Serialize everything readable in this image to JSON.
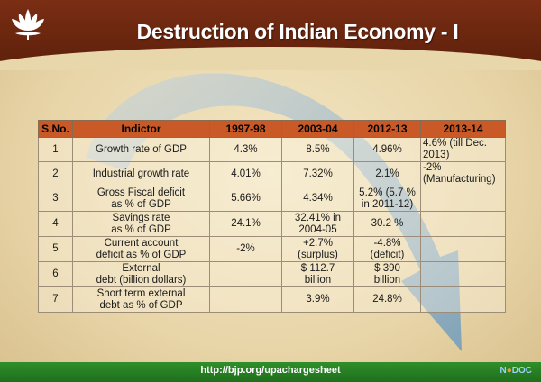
{
  "slide": {
    "title": "Destruction of Indian Economy - I",
    "footer_url": "http://bjp.org/upachargesheet",
    "footer_mark_parts": [
      "N",
      "DOC"
    ]
  },
  "table": {
    "headers": [
      "S.No.",
      "Indictor",
      "1997-98",
      "2003-04",
      "2012-13",
      "2013-14"
    ],
    "rows": [
      {
        "sno": "1",
        "indicator": [
          "Growth rate of GDP"
        ],
        "y1997": [
          "4.3%"
        ],
        "y2003": [
          "8.5%"
        ],
        "y2012": [
          "4.96%"
        ],
        "y2013": [
          "4.6% (till Dec. 2013)"
        ]
      },
      {
        "sno": "2",
        "indicator": [
          "Industrial growth rate"
        ],
        "y1997": [
          "4.01%"
        ],
        "y2003": [
          "7.32%"
        ],
        "y2012": [
          "2.1%"
        ],
        "y2013": [
          "-2% (Manufacturing)"
        ]
      },
      {
        "sno": "3",
        "indicator": [
          "Gross Fiscal deficit",
          "as % of GDP"
        ],
        "y1997": [
          "5.66%"
        ],
        "y2003": [
          "4.34%"
        ],
        "y2012": [
          "5.2% (5.7 %",
          "in 2011-12)"
        ],
        "y2013": []
      },
      {
        "sno": "4",
        "indicator": [
          "Savings rate",
          "as % of GDP"
        ],
        "y1997": [
          "24.1%"
        ],
        "y2003": [
          "32.41% in",
          "2004-05"
        ],
        "y2012": [
          "30.2 %"
        ],
        "y2013": []
      },
      {
        "sno": "5",
        "indicator": [
          "Current account",
          "deficit as % of GDP"
        ],
        "y1997": [
          "-2%"
        ],
        "y2003": [
          "+2.7%",
          "(surplus)"
        ],
        "y2012": [
          "-4.8%",
          "(deficit)"
        ],
        "y2013": []
      },
      {
        "sno": "6",
        "indicator": [
          "External",
          "debt (billion dollars)"
        ],
        "y1997": [],
        "y2003": [
          "$ 112.7",
          "billion"
        ],
        "y2012": [
          "$ 390",
          "billion"
        ],
        "y2013": []
      },
      {
        "sno": "7",
        "indicator": [
          "Short term external",
          "debt as % of GDP"
        ],
        "y1997": [],
        "y2003": [
          "3.9%"
        ],
        "y2012": [
          "24.8%"
        ],
        "y2013": []
      }
    ]
  },
  "colors": {
    "header_band": "#6b2710",
    "table_header": "#c95a28",
    "footer": "#2a8a26",
    "arrow": "#7fa8c8"
  },
  "icons": {
    "logo": "lotus-icon",
    "arrow": "downward-trend-arrow"
  }
}
